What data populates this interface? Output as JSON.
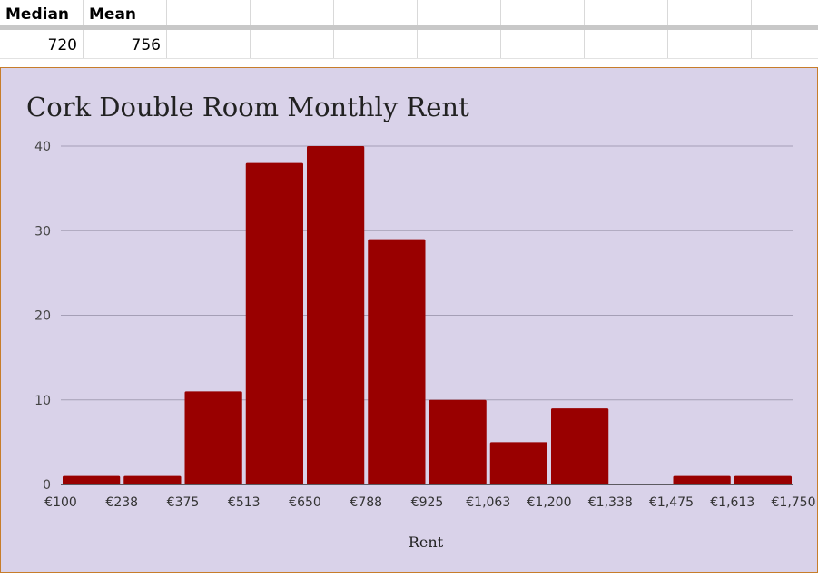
{
  "sheet": {
    "headers": [
      "Median",
      "Mean"
    ],
    "values": [
      "720",
      "756"
    ]
  },
  "chart_data": {
    "type": "bar",
    "title": "Cork Double Room Monthly Rent",
    "xlabel": "Rent",
    "ylabel": "",
    "x_ticks": [
      "€100",
      "€238",
      "€375",
      "€513",
      "€650",
      "€788",
      "€925",
      "€1,063",
      "€1,200",
      "€1,338",
      "€1,475",
      "€1,613",
      "€1,750"
    ],
    "y_ticks": [
      "0",
      "10",
      "20",
      "30",
      "40"
    ],
    "ylim": [
      0,
      40
    ],
    "values": [
      1,
      1,
      11,
      38,
      40,
      29,
      10,
      5,
      9,
      0,
      1,
      1
    ],
    "bar_color": "#990000",
    "grid": true,
    "legend": "none"
  }
}
